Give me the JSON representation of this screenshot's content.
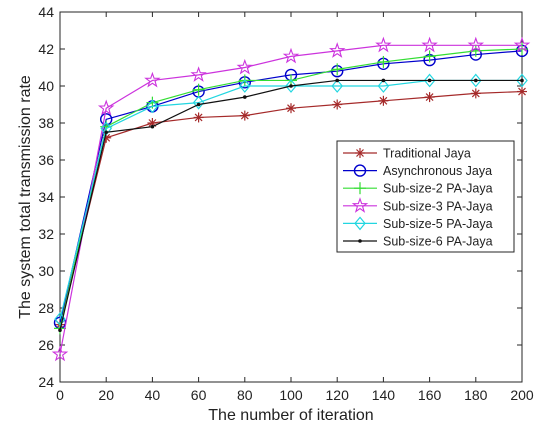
{
  "chart_data": {
    "type": "line",
    "title": "",
    "xlabel": "The number of iteration",
    "ylabel": "The system total transmission rate",
    "xlim": [
      0,
      200
    ],
    "ylim": [
      24,
      44
    ],
    "xticks": [
      0,
      20,
      40,
      60,
      80,
      100,
      120,
      140,
      160,
      180,
      200
    ],
    "yticks": [
      24,
      26,
      28,
      30,
      32,
      34,
      36,
      38,
      40,
      42,
      44
    ],
    "grid": false,
    "legend_position": "right",
    "x": [
      0,
      20,
      40,
      60,
      80,
      100,
      120,
      140,
      160,
      180,
      200
    ],
    "series": [
      {
        "name": "Traditional Jaya",
        "color": "#a52a2a",
        "marker": "asterisk",
        "values": [
          27.1,
          37.2,
          38.0,
          38.3,
          38.4,
          38.8,
          39.0,
          39.2,
          39.4,
          39.6,
          39.7
        ]
      },
      {
        "name": "Asynchronous Jaya",
        "color": "#0000cc",
        "marker": "circle",
        "values": [
          27.2,
          38.2,
          38.9,
          39.7,
          40.2,
          40.6,
          40.8,
          41.2,
          41.4,
          41.7,
          41.9
        ]
      },
      {
        "name": "Sub-size-2 PA-Jaya",
        "color": "#33dd33",
        "marker": "plus",
        "values": [
          26.9,
          37.8,
          39.1,
          39.8,
          40.3,
          40.3,
          40.9,
          41.3,
          41.6,
          41.9,
          42.0
        ]
      },
      {
        "name": "Sub-size-3 PA-Jaya",
        "color": "#cc33dd",
        "marker": "star",
        "values": [
          25.5,
          38.8,
          40.3,
          40.6,
          41.0,
          41.6,
          41.9,
          42.2,
          42.2,
          42.2,
          42.2
        ]
      },
      {
        "name": "Sub-size-5 PA-Jaya",
        "color": "#22d6e0",
        "marker": "diamond",
        "values": [
          27.4,
          37.7,
          38.9,
          39.1,
          40.0,
          40.0,
          40.0,
          40.0,
          40.3,
          40.3,
          40.3
        ]
      },
      {
        "name": "Sub-size-6 PA-Jaya",
        "color": "#111111",
        "marker": "dot",
        "values": [
          26.8,
          37.5,
          37.8,
          39.0,
          39.4,
          40.0,
          40.3,
          40.3,
          40.3,
          40.3,
          40.3
        ]
      }
    ]
  }
}
